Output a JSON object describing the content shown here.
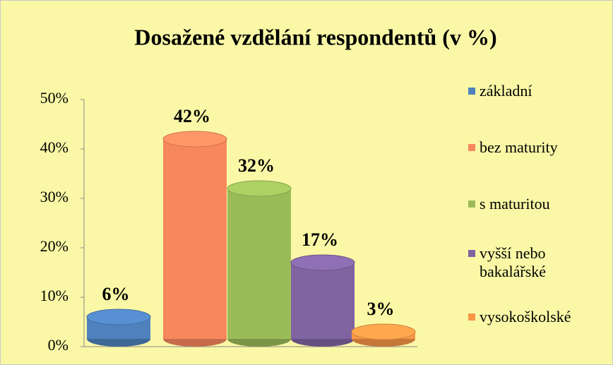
{
  "chart_data": {
    "type": "bar",
    "title": "Dosažené vzdělání respondentů (v %)",
    "series": [
      {
        "name": "základní",
        "color": "#4f81bd",
        "values": [
          6
        ],
        "value_labels": [
          "6%"
        ]
      },
      {
        "name": "bez maturity",
        "color": "#f7875c",
        "values": [
          42
        ],
        "value_labels": [
          "42%"
        ]
      },
      {
        "name": "s maturitou",
        "color": "#9bbb59",
        "values": [
          32
        ],
        "value_labels": [
          "32%"
        ]
      },
      {
        "name": "vyšší nebo bakalářské",
        "color": "#8064a2",
        "values": [
          17
        ],
        "value_labels": [
          "17%"
        ]
      },
      {
        "name": "vysokoškolské",
        "color": "#f79646",
        "values": [
          3
        ],
        "value_labels": [
          "3%"
        ]
      }
    ],
    "ylim": [
      0,
      50
    ],
    "yticks": [
      {
        "value": 0,
        "label": "0%"
      },
      {
        "value": 10,
        "label": "10%"
      },
      {
        "value": 20,
        "label": "20%"
      },
      {
        "value": 30,
        "label": "30%"
      },
      {
        "value": 40,
        "label": "40%"
      },
      {
        "value": 50,
        "label": "50%"
      }
    ],
    "legend": "right"
  }
}
